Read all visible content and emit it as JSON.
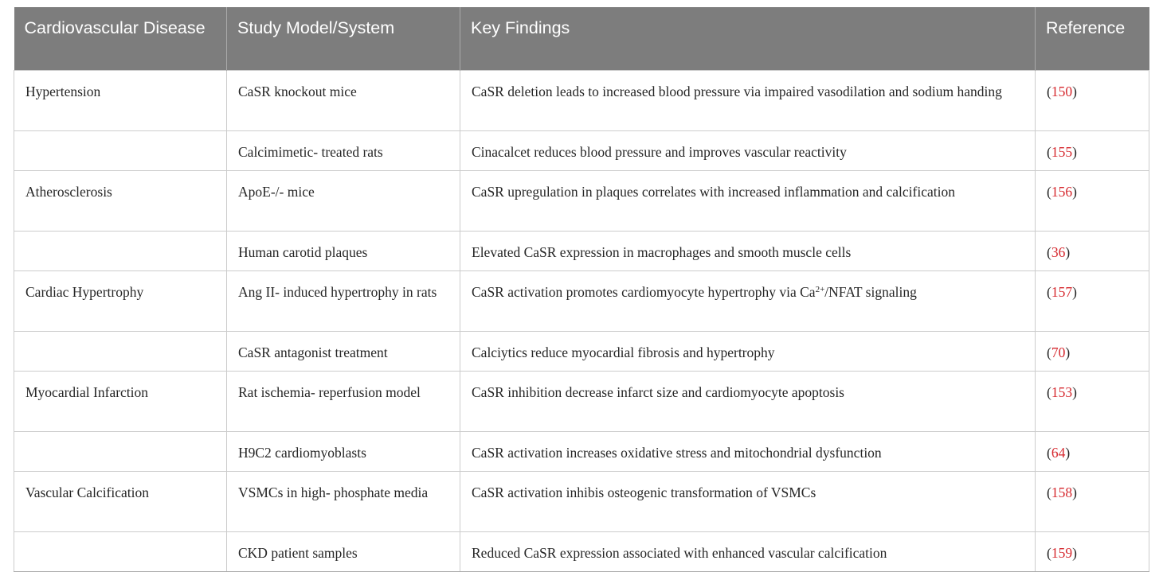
{
  "table": {
    "columns": [
      "Cardiovascular Disease",
      "Study Model/System",
      "Key Findings",
      "Reference"
    ],
    "ref_format": {
      "open": "(",
      "close": ")"
    },
    "rows": [
      {
        "disease": "Hypertension",
        "model": "CaSR knockout mice",
        "finding": "CaSR deletion leads to increased blood pressure via impaired vasodilation and sodium handing",
        "ref": "150"
      },
      {
        "disease": "",
        "model": "Calcimimetic- treated rats",
        "finding": "Cinacalcet reduces blood pressure and improves vascular reactivity",
        "ref": "155"
      },
      {
        "disease": "Atherosclerosis",
        "model": "ApoE-/- mice",
        "finding": "CaSR upregulation in plaques correlates with increased inflammation and calcification",
        "ref": "156"
      },
      {
        "disease": "",
        "model": "Human carotid plaques",
        "finding": "Elevated CaSR expression in macrophages and smooth muscle cells",
        "ref": "36"
      },
      {
        "disease": "Cardiac Hypertrophy",
        "model": "Ang II- induced hypertrophy in rats",
        "finding_parts": [
          "CaSR activation promotes cardiomyocyte hypertrophy via Ca",
          "2+",
          "/NFAT signaling"
        ],
        "ref": "157"
      },
      {
        "disease": "",
        "model": "CaSR antagonist treatment",
        "finding": "Calciytics reduce myocardial fibrosis and hypertrophy",
        "ref": "70"
      },
      {
        "disease": "Myocardial Infarction",
        "model": "Rat ischemia- reperfusion model",
        "finding": "CaSR inhibition decrease infarct size and cardiomyocyte apoptosis",
        "ref": "153"
      },
      {
        "disease": "",
        "model": "H9C2 cardiomyoblasts",
        "finding": "CaSR activation increases oxidative stress and mitochondrial dysfunction",
        "ref": "64"
      },
      {
        "disease": "Vascular Calcification",
        "model": "VSMCs in high- phosphate media",
        "finding": "CaSR activation inhibis osteogenic transformation of VSMCs",
        "ref": "158"
      },
      {
        "disease": "",
        "model": "CKD patient samples",
        "finding": "Reduced CaSR expression associated with enhanced vascular calcification",
        "ref": "159"
      }
    ]
  },
  "colors": {
    "header_background": "#7d7d7d",
    "header_text": "#ffffff",
    "body_text": "#262626",
    "reference_red": "#d6292f",
    "cell_border": "#cccccc"
  }
}
